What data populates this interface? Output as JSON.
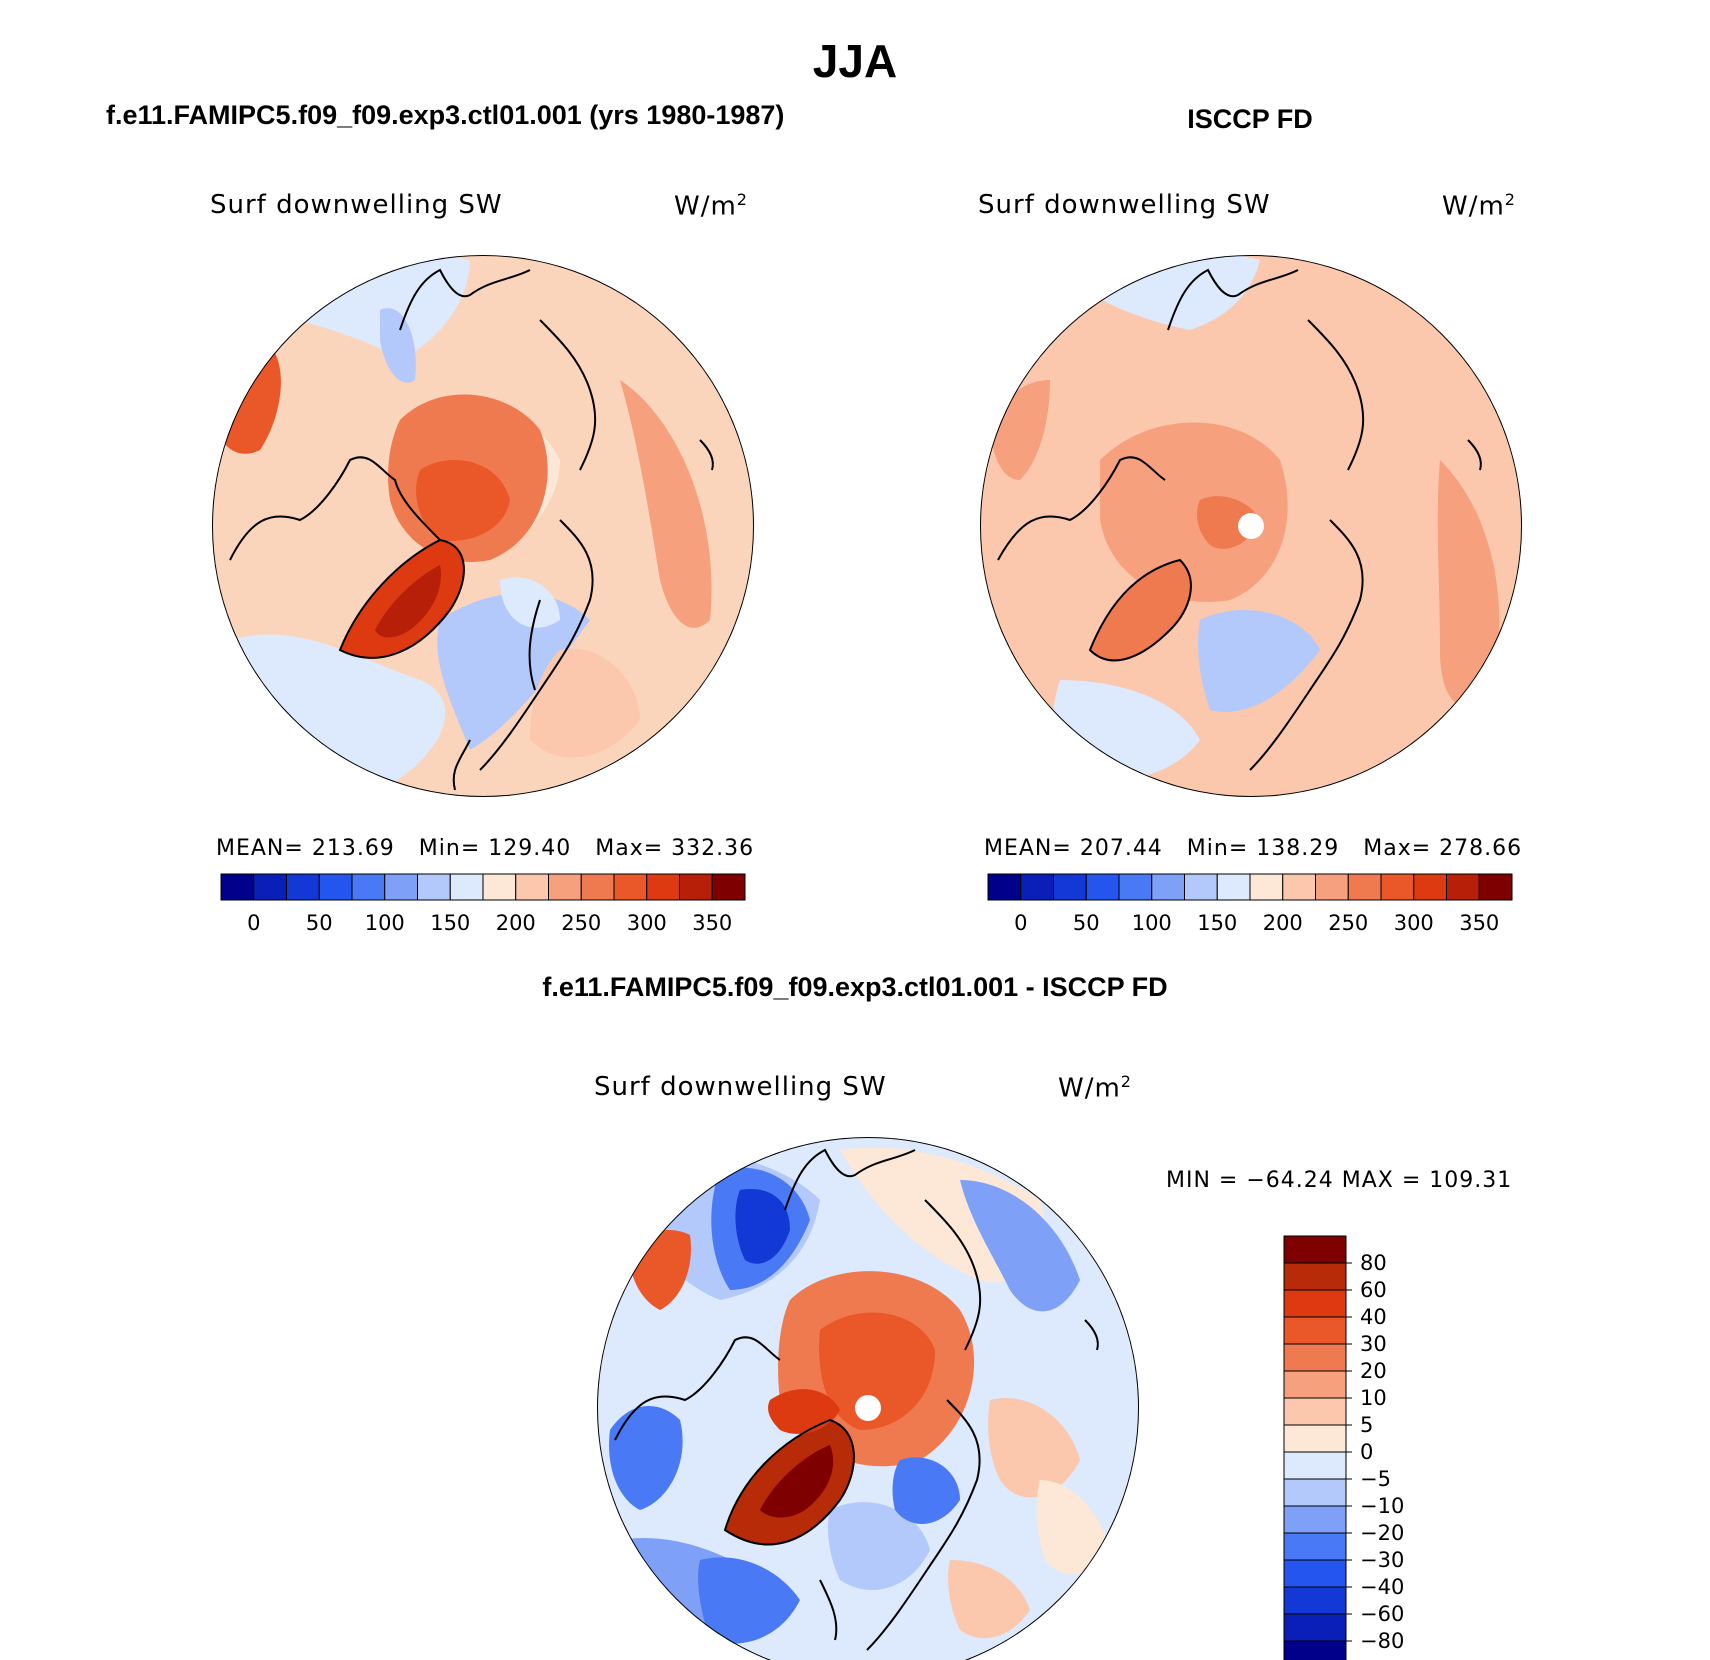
{
  "title": "JJA",
  "panels": {
    "model": {
      "title": "f.e11.FAMIPC5.f09_f09.exp3.ctl01.001 (yrs 1980-1987)",
      "variable": "Surf downwelling SW",
      "units": "W/m",
      "units_exp": "2",
      "stats": {
        "mean_label": "MEAN=",
        "mean": "213.69",
        "min_label": "Min=",
        "min": "129.40",
        "max_label": "Max=",
        "max": "332.36"
      }
    },
    "obs": {
      "title": "ISCCP FD",
      "variable": "Surf downwelling SW",
      "units": "W/m",
      "units_exp": "2",
      "stats": {
        "mean_label": "MEAN=",
        "mean": "207.44",
        "min_label": "Min=",
        "min": "138.29",
        "max_label": "Max=",
        "max": "278.66"
      }
    },
    "diff": {
      "title": "f.e11.FAMIPC5.f09_f09.exp3.ctl01.001 - ISCCP FD",
      "variable": "Surf downwelling SW",
      "units": "W/m",
      "units_exp": "2",
      "range_text": "MIN = −64.24 MAX = 109.31"
    }
  },
  "colorbar_abs": {
    "colors": [
      "#00008b",
      "#0a1fb8",
      "#1239d6",
      "#2555ef",
      "#4a79f5",
      "#7ea0f7",
      "#b3c8fb",
      "#dde9fc",
      "#fde8d8",
      "#fbc8ad",
      "#f6a07d",
      "#f07a4f",
      "#ea5728",
      "#dd3a12",
      "#b81f08",
      "#7e0000"
    ],
    "tick_labels": [
      "0",
      "50",
      "100",
      "150",
      "200",
      "250",
      "300",
      "350"
    ]
  },
  "colorbar_diff": {
    "colors": [
      "#7e0000",
      "#b82b08",
      "#dd3a12",
      "#ea5728",
      "#f07a4f",
      "#f6a07d",
      "#fbc8ad",
      "#fde8d8",
      "#dde9fc",
      "#b3c8fb",
      "#7ea0f7",
      "#4a79f5",
      "#2555ef",
      "#1239d6",
      "#0a1fb8",
      "#00008b"
    ],
    "tick_labels": [
      "80",
      "60",
      "40",
      "30",
      "20",
      "10",
      "5",
      "0",
      "−5",
      "−10",
      "−20",
      "−30",
      "−40",
      "−60",
      "−80"
    ]
  },
  "map_colors": {
    "pole_hole": "#ffffff",
    "coast": "#000000"
  }
}
